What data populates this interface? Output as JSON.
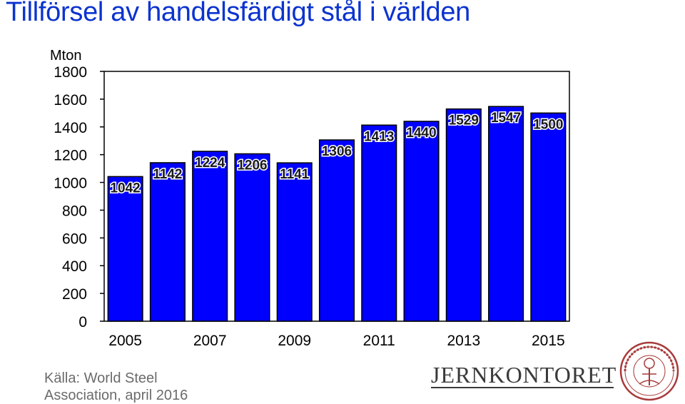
{
  "title": "Tillförsel av handelsfärdigt stål i världen",
  "unit_label": "Mton",
  "source": {
    "line1": "Källa: World Steel",
    "line2": "Association, april 2016"
  },
  "logo": {
    "wordmark": "JERNKONTORET",
    "seal_text": "JERN CONTOIRETS SIGILL"
  },
  "colors": {
    "bar": "#0000ff",
    "title": "#0b33cf"
  },
  "chart_data": {
    "type": "bar",
    "title": "Tillförsel av handelsfärdigt stål i världen",
    "ylabel": "Mton",
    "categories": [
      "2005",
      "2006",
      "2007",
      "2008",
      "2009",
      "2010",
      "2011",
      "2012",
      "2013",
      "2014",
      "2015"
    ],
    "x_tick_labels": [
      "2005",
      "2007",
      "2009",
      "2011",
      "2013",
      "2015"
    ],
    "values": [
      1042,
      1142,
      1224,
      1206,
      1141,
      1306,
      1413,
      1440,
      1529,
      1547,
      1500
    ],
    "ylim": [
      0,
      1800
    ],
    "yticks": [
      0,
      200,
      400,
      600,
      800,
      1000,
      1200,
      1400,
      1600,
      1800
    ],
    "grid": false,
    "legend": "none"
  }
}
